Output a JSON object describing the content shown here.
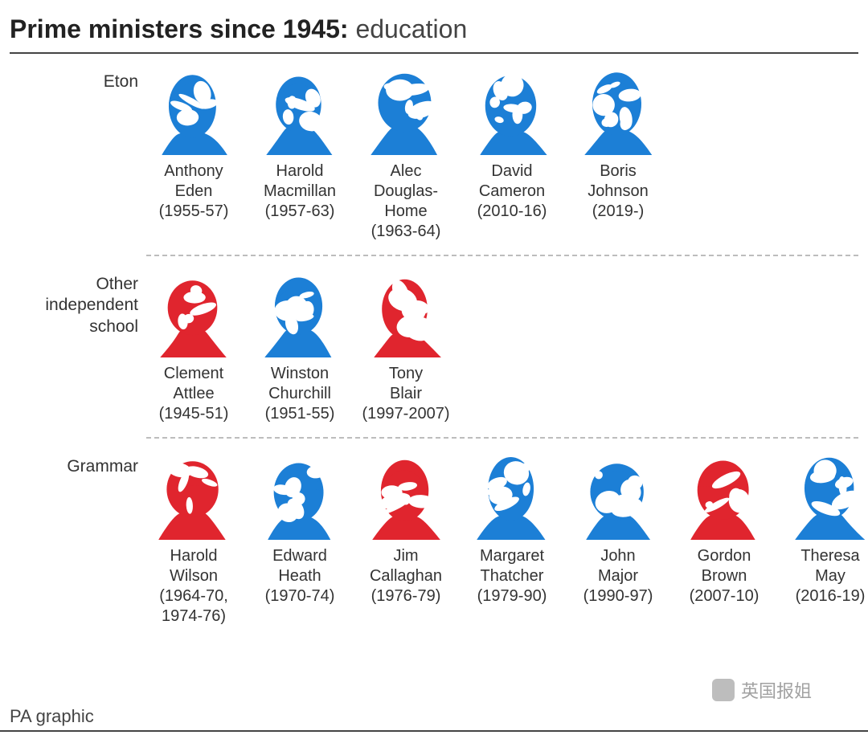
{
  "title_bold": "Prime ministers since 1945:",
  "title_rest": " education",
  "colors": {
    "blue": "#1c7fd6",
    "red": "#e0252e",
    "text": "#333333",
    "divider": "#bdbdbd",
    "rule": "#444444",
    "bg": "#ffffff"
  },
  "portrait_size": {
    "w": 96,
    "h": 110
  },
  "rows": [
    {
      "label": "Eton",
      "people": [
        {
          "name": "Anthony Eden",
          "years": "(1955-57)",
          "color": "blue"
        },
        {
          "name": "Harold Macmillan",
          "years": "(1957-63)",
          "color": "blue"
        },
        {
          "name": "Alec Douglas-Home",
          "years": "(1963-64)",
          "color": "blue"
        },
        {
          "name": "David Cameron",
          "years": "(2010-16)",
          "color": "blue"
        },
        {
          "name": "Boris Johnson",
          "years": "(2019-)",
          "color": "blue"
        }
      ]
    },
    {
      "label": "Other independent school",
      "people": [
        {
          "name": "Clement Attlee",
          "years": "(1945-51)",
          "color": "red"
        },
        {
          "name": "Winston Churchill",
          "years": "(1951-55)",
          "color": "blue"
        },
        {
          "name": "Tony Blair",
          "years": "(1997-2007)",
          "color": "red"
        }
      ]
    },
    {
      "label": "Grammar",
      "people": [
        {
          "name": "Harold Wilson",
          "years": "(1964-70, 1974-76)",
          "color": "red"
        },
        {
          "name": "Edward Heath",
          "years": "(1970-74)",
          "color": "blue"
        },
        {
          "name": "Jim Callaghan",
          "years": "(1976-79)",
          "color": "red"
        },
        {
          "name": "Margaret Thatcher",
          "years": "(1979-90)",
          "color": "blue"
        },
        {
          "name": "John Major",
          "years": "(1990-97)",
          "color": "blue"
        },
        {
          "name": "Gordon Brown",
          "years": "(2007-10)",
          "color": "red"
        },
        {
          "name": "Theresa May",
          "years": "(2016-19)",
          "color": "blue"
        }
      ]
    }
  ],
  "footer": "PA graphic",
  "watermark": "英国报姐"
}
